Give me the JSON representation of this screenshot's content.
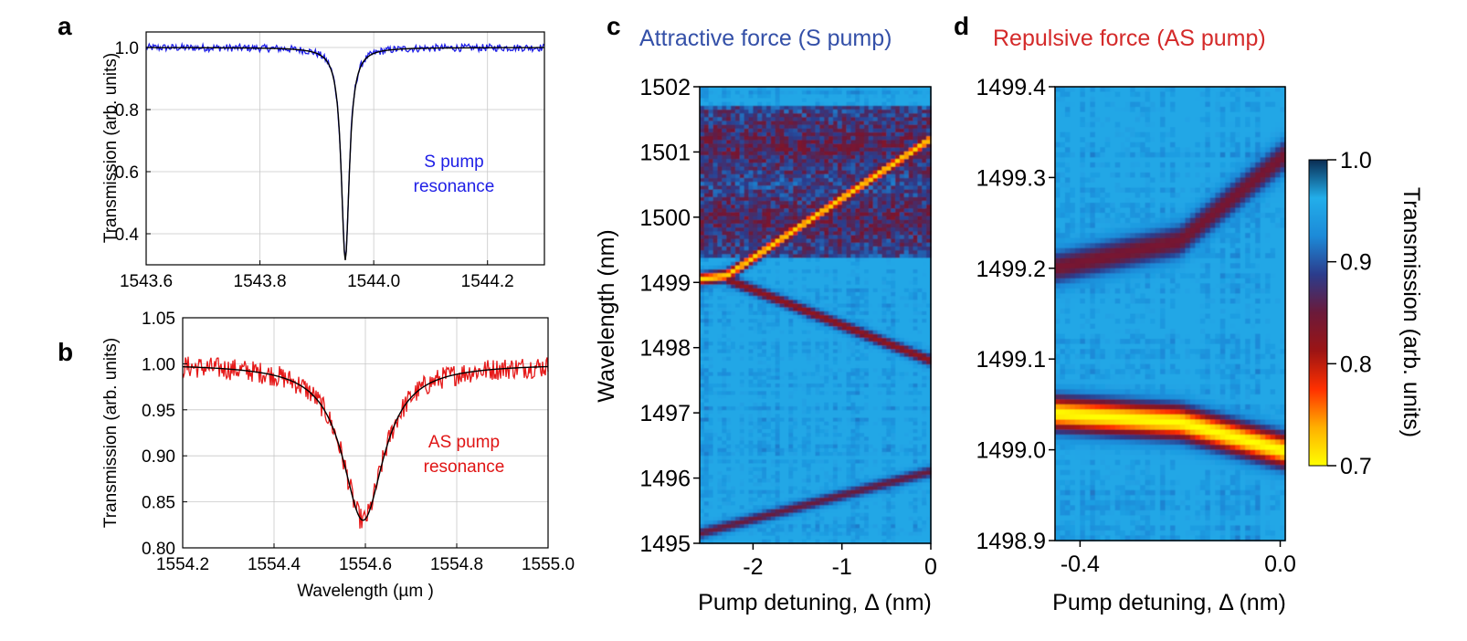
{
  "chart_data": [
    {
      "panel": "a",
      "type": "line",
      "title": "",
      "xlabel": "",
      "ylabel": "Transmission (arb. units)",
      "xlim": [
        1543.6,
        1544.3
      ],
      "ylim": [
        0.3,
        1.05
      ],
      "xticks": [
        1543.6,
        1543.8,
        1544.0,
        1544.2
      ],
      "xtick_labels": [
        "1543.6",
        "1543.8",
        "1544.0",
        "1544.2"
      ],
      "yticks": [
        0.4,
        0.6,
        0.8,
        1.0
      ],
      "ytick_labels": [
        "0.4",
        "0.6",
        "0.8",
        "1.0"
      ],
      "grid": true,
      "annotation": [
        "S pump",
        "resonance"
      ],
      "annotation_color": "#1f1fe6",
      "series": [
        {
          "kind": "data",
          "color": "#1f1fe6",
          "lorentz": {
            "center": 1543.95,
            "hwhm": 0.0085,
            "depth": 0.68
          },
          "noise": 0.012
        },
        {
          "kind": "fit",
          "color": "#000000",
          "lorentz": {
            "center": 1543.95,
            "hwhm": 0.0085,
            "depth": 0.685
          }
        }
      ]
    },
    {
      "panel": "b",
      "type": "line",
      "title": "",
      "xlabel": "Wavelength (µm )",
      "ylabel": "Transmission (arb. units)",
      "xlim": [
        1554.2,
        1555.0
      ],
      "ylim": [
        0.8,
        1.05
      ],
      "xticks": [
        1554.2,
        1554.4,
        1554.6,
        1554.8,
        1555.0
      ],
      "xtick_labels": [
        "1554.2",
        "1554.4",
        "1554.6",
        "1554.8",
        "1555.0"
      ],
      "yticks": [
        0.8,
        0.85,
        0.9,
        0.95,
        1.0,
        1.05
      ],
      "ytick_labels": [
        "0.80",
        "0.85",
        "0.90",
        "0.95",
        "1.00",
        "1.05"
      ],
      "grid": true,
      "annotation": [
        "AS pump",
        "resonance"
      ],
      "annotation_color": "#e01515",
      "series": [
        {
          "kind": "data",
          "color": "#e61a1a",
          "lorentz": {
            "center": 1554.595,
            "hwhm": 0.055,
            "depth": 0.17
          },
          "noise": 0.012
        },
        {
          "kind": "fit",
          "color": "#000000",
          "lorentz": {
            "center": 1554.595,
            "hwhm": 0.055,
            "depth": 0.17
          }
        }
      ]
    },
    {
      "panel": "c",
      "type": "heatmap",
      "title": "Attractive force (S pump)",
      "title_color": "#3450a8",
      "xlabel": "Pump detuning, Δ (nm)",
      "ylabel": "Wavelength (nm)",
      "xlim": [
        -2.6,
        0.0
      ],
      "ylim": [
        1495,
        1502
      ],
      "xticks": [
        -2,
        -1,
        0
      ],
      "xtick_labels": [
        "-2",
        "-1",
        "0"
      ],
      "yticks": [
        1495,
        1496,
        1497,
        1498,
        1499,
        1500,
        1501,
        1502
      ],
      "ytick_labels": [
        "1495",
        "1496",
        "1497",
        "1498",
        "1499",
        "1500",
        "1501",
        "1502"
      ],
      "traces": [
        {
          "name": "",
          "x": [
            -2.6,
            -2.3
          ],
          "y": [
            1499.05,
            1499.1
          ],
          "min_transmission": 0.72
        },
        {
          "name": "",
          "x": [
            -2.3,
            0.0
          ],
          "y": [
            1499.1,
            1501.2
          ],
          "min_transmission": 0.72
        },
        {
          "name": "",
          "x": [
            -2.3,
            0.0
          ],
          "y": [
            1499.05,
            1497.8
          ],
          "min_transmission": 0.82
        },
        {
          "name": "",
          "x": [
            -2.6,
            0.0
          ],
          "y": [
            1495.15,
            1496.1
          ],
          "min_transmission": 0.85
        }
      ],
      "bands": [
        {
          "y_range": [
            1499.4,
            1500.5
          ],
          "min_transmission": 0.86
        },
        {
          "y_range": [
            1500.5,
            1501.7
          ],
          "min_transmission": 0.86
        }
      ]
    },
    {
      "panel": "d",
      "type": "heatmap",
      "title": "Repulsive force (AS pump)",
      "title_color": "#d42a2a",
      "xlabel": "Pump detuning, Δ (nm)",
      "ylabel": "",
      "xlim": [
        -0.45,
        0.01
      ],
      "ylim": [
        1498.9,
        1499.4
      ],
      "xticks": [
        -0.4,
        0.0
      ],
      "xtick_labels": [
        "-0.4",
        "0.0"
      ],
      "yticks": [
        1498.9,
        1499.0,
        1499.1,
        1499.2,
        1499.3,
        1499.4
      ],
      "ytick_labels": [
        "1498.9",
        "1499.0",
        "1499.1",
        "1499.2",
        "1499.3",
        "1499.4"
      ],
      "traces": [
        {
          "name": "",
          "x": [
            -0.45,
            -0.2,
            0.0
          ],
          "y": [
            1499.04,
            1499.03,
            1499.0
          ],
          "min_transmission": 0.7
        },
        {
          "name": "",
          "x": [
            -0.45,
            -0.2,
            0.0
          ],
          "y": [
            1499.2,
            1499.23,
            1499.32
          ],
          "min_transmission": 0.84
        }
      ],
      "colorbar": {
        "label": "Transmission (arb. units)",
        "range": [
          0.7,
          1.0
        ],
        "ticks": [
          0.7,
          0.8,
          0.9,
          1.0
        ],
        "tick_labels": [
          "0.7",
          "0.8",
          "0.9",
          "1.0"
        ],
        "colors": [
          "#ffff00",
          "#ffb000",
          "#ff3000",
          "#9c1414",
          "#6b1a3a",
          "#2b3c8c",
          "#1c8ad8",
          "#22aeea",
          "#0a2c52"
        ]
      }
    }
  ],
  "panel_labels": {
    "a": "a",
    "b": "b",
    "c": "c",
    "d": "d"
  }
}
